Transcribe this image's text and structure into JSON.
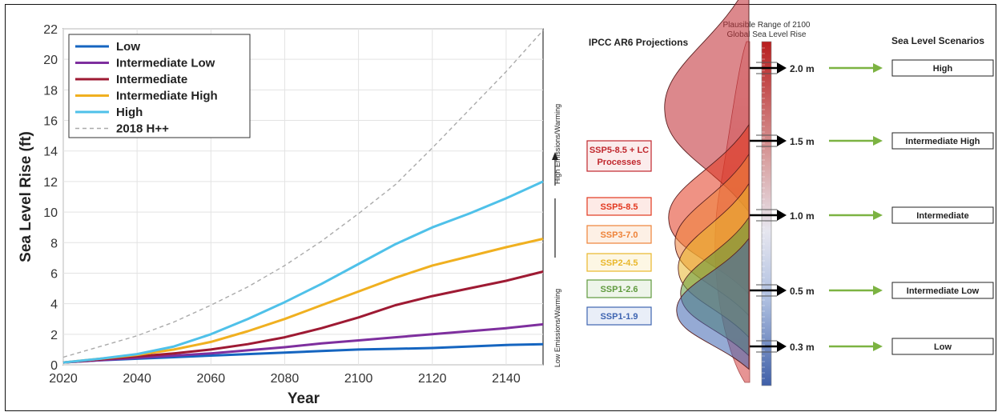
{
  "chart_data": [
    {
      "type": "line",
      "xlabel": "Year",
      "ylabel": "Sea Level Rise (ft)",
      "xlim": [
        2020,
        2150
      ],
      "ylim": [
        0,
        22
      ],
      "x_ticks": [
        "2020",
        "2040",
        "2060",
        "2080",
        "2100",
        "2120",
        "2140"
      ],
      "y_ticks": [
        "0",
        "2",
        "4",
        "6",
        "8",
        "10",
        "12",
        "14",
        "16",
        "18",
        "20",
        "22"
      ],
      "grid": true,
      "legend_position": "top-left",
      "x": [
        2020,
        2030,
        2040,
        2050,
        2060,
        2070,
        2080,
        2090,
        2100,
        2110,
        2120,
        2130,
        2140,
        2150
      ],
      "series": [
        {
          "name": "Low",
          "color": "#1565c0",
          "dash": false,
          "values": [
            0.15,
            0.3,
            0.4,
            0.5,
            0.6,
            0.7,
            0.8,
            0.9,
            1.0,
            1.05,
            1.1,
            1.2,
            1.3,
            1.35
          ]
        },
        {
          "name": "Intermediate Low",
          "color": "#7e2f9e",
          "dash": false,
          "values": [
            0.15,
            0.3,
            0.45,
            0.6,
            0.75,
            0.95,
            1.15,
            1.4,
            1.6,
            1.8,
            2.0,
            2.2,
            2.4,
            2.65
          ]
        },
        {
          "name": "Intermediate",
          "color": "#9e1a33",
          "dash": false,
          "values": [
            0.15,
            0.35,
            0.55,
            0.75,
            1.0,
            1.35,
            1.8,
            2.4,
            3.1,
            3.9,
            4.5,
            5.0,
            5.5,
            6.1
          ]
        },
        {
          "name": "Intermediate High",
          "color": "#f0b020",
          "dash": false,
          "values": [
            0.15,
            0.4,
            0.65,
            1.0,
            1.5,
            2.2,
            3.0,
            3.9,
            4.8,
            5.7,
            6.5,
            7.1,
            7.7,
            8.25
          ]
        },
        {
          "name": "High",
          "color": "#4fc1e9",
          "dash": false,
          "values": [
            0.15,
            0.4,
            0.7,
            1.2,
            2.0,
            3.0,
            4.1,
            5.3,
            6.6,
            7.9,
            9.0,
            9.9,
            10.9,
            12.0
          ]
        },
        {
          "name": "2018 H++",
          "color": "#aaaaaa",
          "dash": true,
          "values": [
            0.5,
            1.2,
            1.9,
            2.8,
            3.9,
            5.1,
            6.5,
            8.1,
            9.9,
            11.8,
            14.2,
            16.7,
            19.2,
            21.9
          ]
        }
      ]
    },
    {
      "type": "diagram",
      "header_projections": "IPCC AR6 Projections",
      "header_range": [
        "Plausible Range of 2100",
        "Global Sea Level Rise"
      ],
      "header_scenarios": "Sea Level Scenarios",
      "axis_low": "Low Emissions/Warming",
      "axis_high": "High Emissions/Warming",
      "ssp": [
        {
          "label": [
            "SSP5-8.5 + LC",
            "Processes"
          ],
          "color": "#c0272d",
          "bg": "#fbecec",
          "distribution_center_m": 1.6
        },
        {
          "label": [
            "SSP5-8.5"
          ],
          "color": "#e2381f",
          "bg": "#fdeae6",
          "distribution_center_m": 0.95
        },
        {
          "label": [
            "SSP3-7.0"
          ],
          "color": "#ee8238",
          "bg": "#fdf0e5",
          "distribution_center_m": 0.8
        },
        {
          "label": [
            "SSP2-4.5"
          ],
          "color": "#e9b72b",
          "bg": "#fdf7e4",
          "distribution_center_m": 0.65
        },
        {
          "label": [
            "SSP1-2.6"
          ],
          "color": "#5f9a3e",
          "bg": "#eef5ea",
          "distribution_center_m": 0.5
        },
        {
          "label": [
            "SSP1-1.9"
          ],
          "color": "#3e64b1",
          "bg": "#e9eef8",
          "distribution_center_m": 0.4
        }
      ],
      "levels": [
        {
          "value": "2.0 m",
          "scenario": "High"
        },
        {
          "value": "1.5 m",
          "scenario": "Intermediate High"
        },
        {
          "value": "1.0 m",
          "scenario": "Intermediate"
        },
        {
          "value": "0.5 m",
          "scenario": "Intermediate Low"
        },
        {
          "value": "0.3 m",
          "scenario": "Low"
        }
      ],
      "arrow_color": "#7cb342"
    }
  ]
}
